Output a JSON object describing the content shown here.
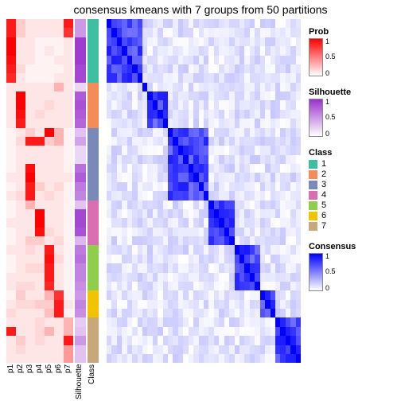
{
  "title": "consensus kmeans with 7 groups from 50 partitions",
  "n_rows": 38,
  "partitions": {
    "labels": [
      "p1",
      "p2",
      "p3",
      "p4",
      "p5",
      "p6",
      "p7"
    ],
    "low_color": "#ffffff",
    "high_color": "#ff0000",
    "data": [
      [
        0.9,
        0.2,
        0.1,
        0.1,
        0.1,
        0.1,
        0.9
      ],
      [
        0.9,
        0.2,
        0.1,
        0.1,
        0.1,
        0.1,
        0.8
      ],
      [
        1.0,
        0.1,
        0.1,
        0.05,
        0.05,
        0.05,
        0.1
      ],
      [
        1.0,
        0.1,
        0.1,
        0.05,
        0.1,
        0.05,
        0.1
      ],
      [
        0.95,
        0.1,
        0.1,
        0.05,
        0.05,
        0.1,
        0.1
      ],
      [
        0.9,
        0.15,
        0.05,
        0.05,
        0.05,
        0.05,
        0.1
      ],
      [
        0.85,
        0.1,
        0.05,
        0.05,
        0.05,
        0.1,
        0.1
      ],
      [
        0.1,
        0.1,
        0.1,
        0.1,
        0.1,
        0.3,
        0.1
      ],
      [
        0.1,
        1.0,
        0.1,
        0.1,
        0.1,
        0.1,
        0.1
      ],
      [
        0.1,
        1.0,
        0.1,
        0.1,
        0.15,
        0.1,
        0.1
      ],
      [
        0.1,
        0.95,
        0.1,
        0.15,
        0.1,
        0.1,
        0.1
      ],
      [
        0.1,
        0.9,
        0.1,
        0.1,
        0.1,
        0.1,
        0.1
      ],
      [
        0.05,
        0.1,
        0.2,
        0.1,
        1.0,
        0.3,
        0.05
      ],
      [
        0.05,
        0.15,
        0.9,
        0.9,
        0.2,
        0.3,
        0.05
      ],
      [
        0.05,
        0.1,
        0.1,
        0.1,
        0.1,
        0.1,
        0.05
      ],
      [
        0.05,
        0.1,
        0.1,
        0.1,
        0.1,
        0.1,
        0.05
      ],
      [
        0.05,
        0.1,
        0.95,
        0.1,
        0.1,
        0.1,
        0.05
      ],
      [
        0.1,
        0.1,
        1.0,
        0.1,
        0.1,
        0.1,
        0.1
      ],
      [
        0.05,
        0.1,
        0.9,
        0.2,
        0.1,
        0.15,
        0.05
      ],
      [
        0.1,
        0.15,
        0.9,
        0.1,
        0.15,
        0.1,
        0.05
      ],
      [
        0.05,
        0.1,
        0.3,
        0.1,
        0.1,
        0.1,
        0.05
      ],
      [
        0.05,
        0.1,
        0.1,
        1.0,
        0.1,
        0.1,
        0.05
      ],
      [
        0.1,
        0.1,
        0.1,
        1.0,
        0.1,
        0.1,
        0.05
      ],
      [
        0.05,
        0.1,
        0.1,
        0.95,
        0.15,
        0.1,
        0.05
      ],
      [
        0.05,
        0.1,
        0.2,
        0.2,
        0.1,
        0.15,
        0.05
      ],
      [
        0.1,
        0.1,
        0.15,
        0.1,
        0.9,
        0.1,
        0.05
      ],
      [
        0.05,
        0.1,
        0.1,
        0.1,
        0.95,
        0.15,
        0.05
      ],
      [
        0.05,
        0.1,
        0.15,
        0.15,
        0.9,
        0.1,
        0.05
      ],
      [
        0.1,
        0.1,
        0.1,
        0.1,
        0.9,
        0.1,
        0.05
      ],
      [
        0.1,
        0.15,
        0.15,
        0.1,
        0.85,
        0.1,
        0.05
      ],
      [
        0.05,
        0.2,
        0.1,
        0.1,
        0.3,
        0.8,
        0.05
      ],
      [
        0.1,
        0.15,
        0.15,
        0.2,
        0.2,
        0.9,
        0.1
      ],
      [
        0.15,
        0.1,
        0.1,
        0.1,
        0.25,
        0.9,
        0.05
      ],
      [
        0.1,
        0.1,
        0.1,
        0.15,
        0.1,
        0.1,
        0.3
      ],
      [
        0.9,
        0.1,
        0.1,
        0.15,
        0.3,
        0.1,
        0.3
      ],
      [
        0.1,
        0.2,
        0.1,
        0.15,
        0.1,
        0.1,
        0.9
      ],
      [
        0.1,
        0.15,
        0.1,
        0.1,
        0.1,
        0.1,
        0.4
      ],
      [
        0.1,
        0.1,
        0.1,
        0.1,
        0.1,
        0.1,
        0.4
      ]
    ]
  },
  "silhouette": {
    "label": "Silhouette",
    "low_color": "#ffffff",
    "high_color": "#9a32cd",
    "values": [
      0.5,
      0.5,
      0.95,
      0.95,
      0.95,
      0.9,
      0.9,
      0.2,
      0.8,
      0.85,
      0.8,
      0.75,
      0.3,
      0.45,
      0.2,
      0.2,
      0.7,
      0.8,
      0.65,
      0.6,
      0.3,
      0.9,
      0.9,
      0.85,
      0.35,
      0.65,
      0.7,
      0.6,
      0.6,
      0.55,
      0.5,
      0.6,
      0.55,
      0.25,
      0.3,
      0.5,
      0.3,
      0.3
    ]
  },
  "class_col": {
    "label": "Class",
    "assign": [
      1,
      1,
      1,
      1,
      1,
      1,
      1,
      2,
      2,
      2,
      2,
      2,
      3,
      3,
      3,
      3,
      3,
      3,
      3,
      3,
      4,
      4,
      4,
      4,
      4,
      5,
      5,
      5,
      5,
      5,
      6,
      6,
      6,
      7,
      7,
      7,
      7,
      7
    ],
    "colors": {
      "1": "#3fbfa2",
      "2": "#f58b59",
      "3": "#7a8ab8",
      "4": "#d96fb0",
      "5": "#8fce4d",
      "6": "#f0c400",
      "7": "#c8a87a"
    }
  },
  "consensus": {
    "low_color": "#ffffff",
    "high_color": "#0000ff",
    "block_edges": [
      0,
      7,
      8,
      12,
      20,
      25,
      30,
      33,
      38
    ],
    "diag_strength": 1.0,
    "inblock_strength": 0.72,
    "offblock_strength": 0.1,
    "noise": 0.07
  },
  "legends": {
    "prob": {
      "title": "Prob",
      "ticks": [
        "1",
        "0.5",
        "0"
      ],
      "low": "#ffffff",
      "high": "#ff0000"
    },
    "sil": {
      "title": "Silhouette",
      "ticks": [
        "1",
        "0.5",
        "0"
      ],
      "low": "#ffffff",
      "high": "#9a32cd"
    },
    "class": {
      "title": "Class",
      "items": [
        [
          "1",
          "#3fbfa2"
        ],
        [
          "2",
          "#f58b59"
        ],
        [
          "3",
          "#7a8ab8"
        ],
        [
          "4",
          "#d96fb0"
        ],
        [
          "5",
          "#8fce4d"
        ],
        [
          "6",
          "#f0c400"
        ],
        [
          "7",
          "#c8a87a"
        ]
      ]
    },
    "cons": {
      "title": "Consensus",
      "ticks": [
        "1",
        "0.5",
        "0"
      ],
      "low": "#ffffff",
      "high": "#0000ff"
    }
  }
}
